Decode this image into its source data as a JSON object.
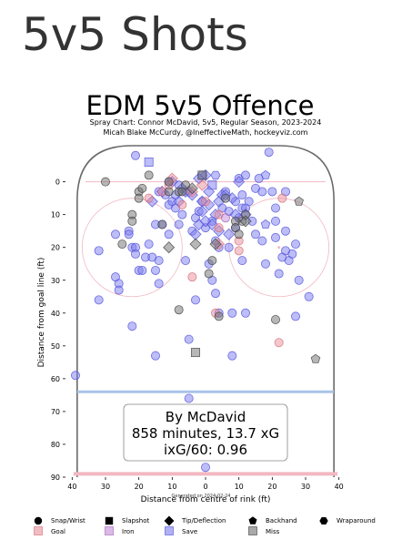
{
  "page_heading": "5v5 Shots",
  "chart_data": {
    "type": "scatter",
    "title": "EDM 5v5 Offence",
    "subtitle_lines": [
      "Spray Chart: Connor McDavid, 5v5, Regular Season, 2023-2024",
      "Micah Blake McCurdy, @IneffectiveMath, hockeyviz.com"
    ],
    "xlabel": "Distance from centre of rink (ft)",
    "ylabel": "Distance from goal line (ft)",
    "xlim": [
      42,
      -42
    ],
    "ylim": [
      -11,
      90
    ],
    "x_ticks": [
      40,
      30,
      20,
      10,
      0,
      10,
      20,
      30,
      40
    ],
    "x_tick_values": [
      40,
      30,
      20,
      10,
      0,
      -10,
      -20,
      -30,
      -40
    ],
    "y_ticks": [
      0,
      10,
      20,
      30,
      40,
      50,
      60,
      70,
      80,
      90
    ],
    "generated": "Generated on 2024-02-24",
    "annotation_lines": [
      "By McDavid",
      "858 minutes, 13.7 xG",
      "ixG/60: 0.96"
    ],
    "colors": {
      "goal": "#e8909a",
      "save": "#7b7bf0",
      "miss": "#707070",
      "iron": "#c48ad8",
      "blue_line": "#a9c4e8",
      "red_line": "#f2b8c2",
      "boards": "#6a6a6a"
    },
    "legend": {
      "shapes": [
        {
          "label": "Snap/Wrist",
          "marker": "circle"
        },
        {
          "label": "Slapshot",
          "marker": "square"
        },
        {
          "label": "Tip/Deflection",
          "marker": "diamond"
        },
        {
          "label": "Backhand",
          "marker": "pentagon"
        },
        {
          "label": "Wraparound",
          "marker": "hexagon"
        }
      ],
      "outcomes": [
        {
          "label": "Goal",
          "outcome": "goal"
        },
        {
          "label": "Iron",
          "outcome": "iron"
        },
        {
          "label": "Save",
          "outcome": "save"
        },
        {
          "label": "Miss",
          "outcome": "miss"
        }
      ]
    },
    "series": [
      {
        "outcome": "save",
        "shape": "circle",
        "points": [
          [
            21,
            -8
          ],
          [
            39,
            59
          ],
          [
            32,
            21
          ],
          [
            32,
            36
          ],
          [
            27,
            16
          ],
          [
            27,
            29
          ],
          [
            26,
            31
          ],
          [
            26,
            33
          ],
          [
            23,
            15
          ],
          [
            23,
            16
          ],
          [
            22,
            20
          ],
          [
            22,
            44
          ],
          [
            21,
            20
          ],
          [
            21,
            22
          ],
          [
            20,
            27
          ],
          [
            19,
            27
          ],
          [
            18,
            23
          ],
          [
            17,
            19
          ],
          [
            16,
            23
          ],
          [
            15,
            13
          ],
          [
            15,
            27
          ],
          [
            15,
            53
          ],
          [
            14,
            3
          ],
          [
            14,
            24
          ],
          [
            14,
            31
          ],
          [
            13,
            13
          ],
          [
            12,
            4
          ],
          [
            11,
            0
          ],
          [
            11,
            7
          ],
          [
            11,
            16
          ],
          [
            10,
            6
          ],
          [
            9,
            4
          ],
          [
            9,
            8
          ],
          [
            8,
            1
          ],
          [
            8,
            13
          ],
          [
            7,
            10
          ],
          [
            6,
            24
          ],
          [
            5,
            48
          ],
          [
            5,
            66
          ],
          [
            4,
            15
          ],
          [
            3,
            11
          ],
          [
            3,
            36
          ],
          [
            2,
            9
          ],
          [
            1,
            6
          ],
          [
            0,
            14
          ],
          [
            0,
            87
          ],
          [
            -1,
            25
          ],
          [
            -2,
            12
          ],
          [
            -2,
            30
          ],
          [
            -3,
            18
          ],
          [
            -3,
            34
          ],
          [
            -4,
            20
          ],
          [
            -4,
            40
          ],
          [
            -5,
            8
          ],
          [
            -6,
            3
          ],
          [
            -7,
            9
          ],
          [
            -7,
            20
          ],
          [
            -8,
            40
          ],
          [
            -8,
            53
          ],
          [
            -9,
            6
          ],
          [
            -9,
            14
          ],
          [
            -10,
            -1
          ],
          [
            -10,
            11
          ],
          [
            -11,
            4
          ],
          [
            -11,
            8
          ],
          [
            -11,
            24
          ],
          [
            -12,
            -2
          ],
          [
            -12,
            8
          ],
          [
            -12,
            40
          ],
          [
            -13,
            6
          ],
          [
            -14,
            12
          ],
          [
            -15,
            2
          ],
          [
            -15,
            16
          ],
          [
            -16,
            -1
          ],
          [
            -17,
            3
          ],
          [
            -17,
            18
          ],
          [
            -18,
            25
          ],
          [
            -19,
            -9
          ],
          [
            -20,
            3
          ],
          [
            -21,
            8
          ],
          [
            -21,
            12
          ],
          [
            -21,
            17
          ],
          [
            -22,
            28
          ],
          [
            -23,
            23
          ],
          [
            -24,
            3
          ],
          [
            -24,
            15
          ],
          [
            -24,
            21
          ],
          [
            -25,
            24
          ],
          [
            -26,
            22
          ],
          [
            -27,
            19
          ],
          [
            -27,
            41
          ],
          [
            -28,
            30
          ],
          [
            -31,
            35
          ]
        ]
      },
      {
        "outcome": "save",
        "shape": "square",
        "points": [
          [
            17,
            -6
          ],
          [
            -2,
            1
          ]
        ]
      },
      {
        "outcome": "save",
        "shape": "diamond",
        "points": [
          [
            16,
            6
          ],
          [
            13,
            3
          ],
          [
            10,
            0
          ],
          [
            8,
            6
          ],
          [
            7,
            2
          ],
          [
            6,
            3
          ],
          [
            5,
            3
          ],
          [
            4,
            4
          ],
          [
            3,
            16
          ],
          [
            2,
            -1
          ],
          [
            2,
            13
          ],
          [
            1,
            6
          ],
          [
            1,
            9
          ],
          [
            0,
            -2
          ],
          [
            0,
            12
          ],
          [
            -1,
            3
          ],
          [
            -1,
            7
          ],
          [
            -2,
            13
          ],
          [
            -3,
            10
          ],
          [
            -4,
            6
          ],
          [
            -4,
            15
          ],
          [
            -5,
            4
          ],
          [
            -6,
            4
          ],
          [
            -7,
            16
          ],
          [
            -8,
            5
          ],
          [
            -9,
            10
          ],
          [
            -10,
            0
          ],
          [
            -12,
            10
          ]
        ]
      },
      {
        "outcome": "save",
        "shape": "pentagon",
        "points": [
          [
            -18,
            -2
          ],
          [
            -18,
            13
          ]
        ]
      },
      {
        "outcome": "save",
        "shape": "hexagon",
        "points": [
          [
            -3,
            -2
          ],
          [
            1,
            -2
          ]
        ]
      },
      {
        "outcome": "goal",
        "shape": "circle",
        "points": [
          [
            17,
            5
          ],
          [
            13,
            3
          ],
          [
            11,
            1
          ],
          [
            7,
            7
          ],
          [
            4,
            29
          ],
          [
            0,
            6
          ],
          [
            -3,
            40
          ],
          [
            -4,
            14
          ],
          [
            -4,
            10
          ],
          [
            -10,
            18
          ],
          [
            -10,
            21
          ],
          [
            -23,
            5
          ],
          [
            -22,
            49
          ]
        ]
      },
      {
        "outcome": "goal",
        "shape": "diamond",
        "points": [
          [
            10,
            -1
          ],
          [
            4,
            3
          ],
          [
            1,
            1
          ],
          [
            -4,
            19
          ]
        ]
      },
      {
        "outcome": "iron",
        "shape": "circle",
        "points": [
          [
            -6,
            11
          ]
        ]
      },
      {
        "outcome": "miss",
        "shape": "circle",
        "points": [
          [
            30,
            0
          ],
          [
            25,
            19
          ],
          [
            22,
            10
          ],
          [
            22,
            12
          ],
          [
            20,
            3
          ],
          [
            20,
            5
          ],
          [
            19,
            2
          ],
          [
            17,
            -2
          ],
          [
            13,
            13
          ],
          [
            11,
            0
          ],
          [
            11,
            3
          ],
          [
            8,
            3
          ],
          [
            8,
            39
          ],
          [
            7,
            3
          ],
          [
            6,
            1
          ],
          [
            -1,
            28
          ],
          [
            -2,
            24
          ],
          [
            -4,
            41
          ],
          [
            -6,
            5
          ],
          [
            -9,
            12
          ],
          [
            -9,
            14
          ],
          [
            -10,
            16
          ],
          [
            -11,
            12
          ],
          [
            -12,
            10
          ],
          [
            -21,
            42
          ]
        ]
      },
      {
        "outcome": "miss",
        "shape": "square",
        "points": [
          [
            3,
            52
          ],
          [
            1,
            -2
          ]
        ]
      },
      {
        "outcome": "miss",
        "shape": "diamond",
        "points": [
          [
            11,
            20
          ],
          [
            4,
            2
          ],
          [
            3,
            19
          ],
          [
            -3,
            19
          ],
          [
            -12,
            12
          ]
        ]
      },
      {
        "outcome": "miss",
        "shape": "pentagon",
        "points": [
          [
            -28,
            6
          ],
          [
            -33,
            54
          ]
        ]
      }
    ]
  }
}
